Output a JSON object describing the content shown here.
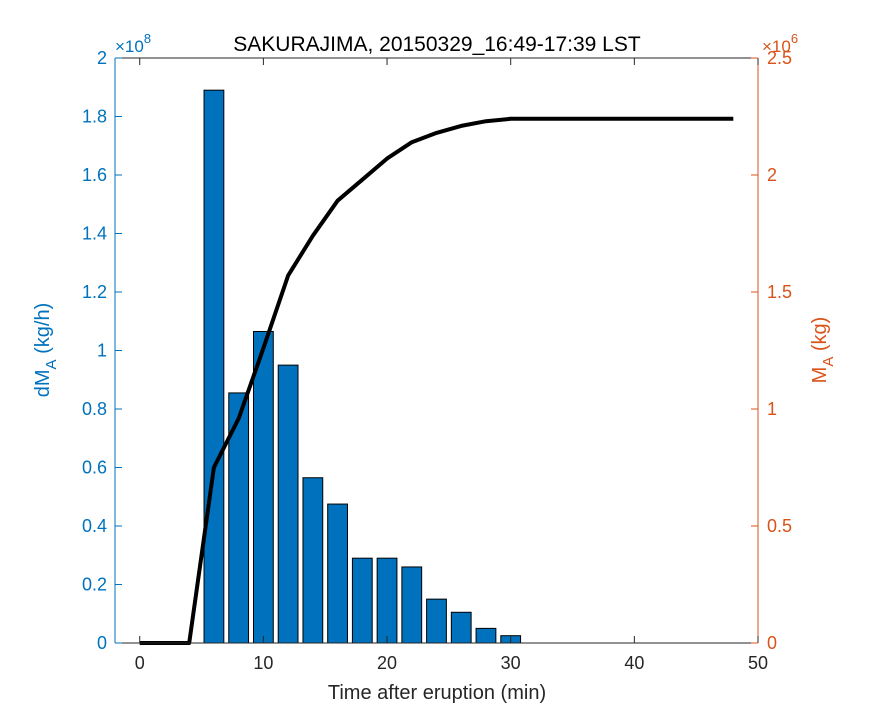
{
  "chart_data": {
    "type": "bar",
    "title": "SAKURAJIMA, 20150329_16:49-17:39 LST",
    "xlabel": "Time after eruption (min)",
    "xlim": [
      -2,
      50
    ],
    "xticks": [
      0,
      10,
      20,
      30,
      40,
      50
    ],
    "left_axis": {
      "label_main": "dM",
      "label_sub": "A",
      "label_unit": "(kg/h)",
      "ylim": [
        0,
        2
      ],
      "ticks": [
        0,
        0.2,
        0.4,
        0.6,
        0.8,
        1,
        1.2,
        1.4,
        1.6,
        1.8,
        2
      ],
      "tick_labels": [
        "0",
        "0.2",
        "0.4",
        "0.6",
        "0.8",
        "1",
        "1.2",
        "1.4",
        "1.6",
        "1.8",
        "2"
      ],
      "exponent_base": "×10",
      "exponent": "8",
      "color": "#0072BD"
    },
    "right_axis": {
      "label_main": "M",
      "label_sub": "A",
      "label_unit": "(kg)",
      "ylim": [
        0,
        2.5
      ],
      "ticks": [
        0,
        0.5,
        1,
        1.5,
        2,
        2.5
      ],
      "tick_labels": [
        "0",
        "0.5",
        "1",
        "1.5",
        "2",
        "2.5"
      ],
      "exponent_base": "×10",
      "exponent": "6",
      "color": "#D95319"
    },
    "bars": {
      "axis": "left",
      "color": "#0072BD",
      "width": 1.6,
      "x": [
        6,
        8,
        10,
        12,
        14,
        16,
        18,
        20,
        22,
        24,
        26,
        28,
        30
      ],
      "values": [
        1.89,
        0.855,
        1.065,
        0.95,
        0.565,
        0.475,
        0.29,
        0.29,
        0.26,
        0.15,
        0.105,
        0.05,
        0.025
      ]
    },
    "line": {
      "axis": "right",
      "color": "#000000",
      "x": [
        0,
        4,
        6,
        8,
        10,
        12,
        14,
        16,
        18,
        20,
        22,
        24,
        26,
        28,
        30,
        32,
        36,
        40,
        44,
        48
      ],
      "values": [
        0,
        0,
        0.75,
        0.96,
        1.26,
        1.57,
        1.74,
        1.89,
        1.98,
        2.07,
        2.14,
        2.18,
        2.21,
        2.23,
        2.24,
        2.24,
        2.24,
        2.24,
        2.24,
        2.24
      ]
    }
  }
}
